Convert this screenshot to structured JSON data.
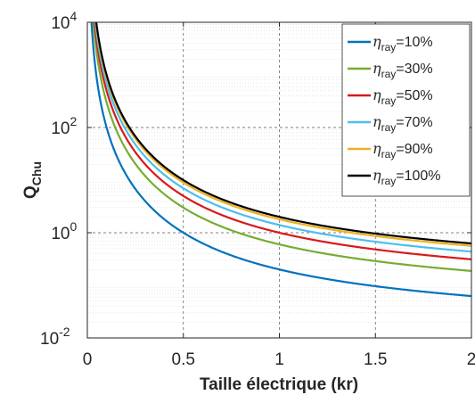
{
  "chart_data": {
    "type": "line",
    "title": "",
    "xlabel": "Taille électrique (kr)",
    "ylabel": "Q",
    "ylabel_sub": "Chu",
    "xlim": [
      0,
      2
    ],
    "ylim": [
      0.01,
      10000
    ],
    "yscale": "log",
    "grid": true,
    "minor_grid": true,
    "legend_position": "top-right",
    "x_ticks": [
      {
        "value": 0,
        "label": "0"
      },
      {
        "value": 0.5,
        "label": "0.5"
      },
      {
        "value": 1,
        "label": "1"
      },
      {
        "value": 1.5,
        "label": "1.5"
      },
      {
        "value": 2,
        "label": "2"
      }
    ],
    "y_ticks": [
      {
        "value": 0.01,
        "base": "10",
        "exp": "-2"
      },
      {
        "value": 1,
        "base": "10",
        "exp": "0"
      },
      {
        "value": 100,
        "base": "10",
        "exp": "2"
      },
      {
        "value": 10000,
        "base": "10",
        "exp": "4"
      }
    ],
    "legend_symbol": "η",
    "legend_sub": "ray",
    "series": [
      {
        "name": "=10%",
        "color": "#0072bd",
        "eta": 0.1
      },
      {
        "name": "=30%",
        "color": "#77ac30",
        "eta": 0.3
      },
      {
        "name": "=50%",
        "color": "#d7191c",
        "eta": 0.5
      },
      {
        "name": "=70%",
        "color": "#4dbeee",
        "eta": 0.7
      },
      {
        "name": "=90%",
        "color": "#edb120",
        "eta": 0.9
      },
      {
        "name": "=100%",
        "color": "#000000",
        "eta": 1.0
      }
    ],
    "formula": "Q = eta * (1/(kr)^3 + 1/(kr))"
  }
}
